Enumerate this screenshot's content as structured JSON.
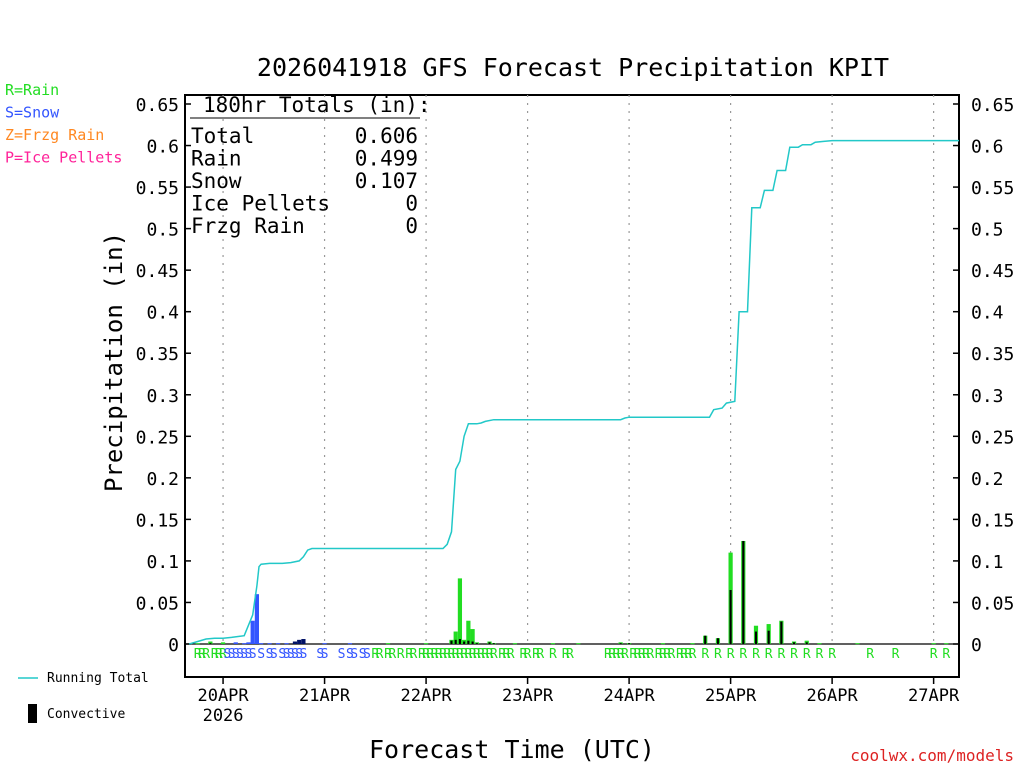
{
  "title": "2026041918 GFS Forecast Precipitation KPIT",
  "legend_types": [
    {
      "label": "R=Rain",
      "color": "#22dd22"
    },
    {
      "label": "S=Snow",
      "color": "#3355ff"
    },
    {
      "label": "Z=Frzg Rain",
      "color": "#ff8822"
    },
    {
      "label": "P=Ice Pellets",
      "color": "#ff2299"
    }
  ],
  "totals": {
    "heading": "180hr Totals (in):",
    "rows": [
      {
        "label": "Total",
        "value": "0.606"
      },
      {
        "label": "Rain",
        "value": "0.499"
      },
      {
        "label": "Snow",
        "value": "0.107"
      },
      {
        "label": "Ice Pellets",
        "value": "0"
      },
      {
        "label": "Frzg Rain",
        "value": "0"
      }
    ]
  },
  "bottom_legend": {
    "running_total": "Running Total",
    "convective": "Convective"
  },
  "footer": "coolwx.com/models",
  "colors": {
    "rain": "#22dd22",
    "snow": "#3355ff",
    "running_total": "#22c8c8",
    "convective": "#000000",
    "dark_snow": "#001166"
  },
  "chart_data": {
    "type": "bar",
    "title": "2026041918 GFS Forecast Precipitation KPIT",
    "xlabel": "Forecast Time (UTC)",
    "ylabel": "Precipitation (in)",
    "ylim": [
      0,
      0.65
    ],
    "yticks": [
      0,
      0.05,
      0.1,
      0.15,
      0.2,
      0.25,
      0.3,
      0.35,
      0.4,
      0.45,
      0.5,
      0.55,
      0.6,
      0.65
    ],
    "xlim_hours": [
      -3,
      180
    ],
    "x_unit": "forecast hours from 2026-04-19 18Z",
    "xticks": [
      {
        "hour": 6,
        "label": "20APR",
        "sublabel": "2026"
      },
      {
        "hour": 30,
        "label": "21APR",
        "sublabel": ""
      },
      {
        "hour": 54,
        "label": "22APR",
        "sublabel": ""
      },
      {
        "hour": 78,
        "label": "23APR",
        "sublabel": ""
      },
      {
        "hour": 102,
        "label": "24APR",
        "sublabel": ""
      },
      {
        "hour": 126,
        "label": "25APR",
        "sublabel": ""
      },
      {
        "hour": 150,
        "label": "26APR",
        "sublabel": ""
      },
      {
        "hour": 174,
        "label": "27APR",
        "sublabel": ""
      }
    ],
    "grid": "vertical dotted at day boundaries",
    "bars": [
      {
        "hour": 0,
        "value": 0.001,
        "convective": 0,
        "type": "rain"
      },
      {
        "hour": 3,
        "value": 0.003,
        "convective": 0.001,
        "type": "rain"
      },
      {
        "hour": 6,
        "value": 0.002,
        "convective": 0,
        "type": "rain"
      },
      {
        "hour": 9,
        "value": 0.002,
        "convective": 0,
        "type": "snow"
      },
      {
        "hour": 11,
        "value": 0.001,
        "convective": 0,
        "type": "snow"
      },
      {
        "hour": 12,
        "value": 0.002,
        "convective": 0,
        "type": "snow"
      },
      {
        "hour": 13,
        "value": 0.028,
        "convective": 0,
        "type": "snow"
      },
      {
        "hour": 14,
        "value": 0.06,
        "convective": 0,
        "type": "snow"
      },
      {
        "hour": 15,
        "value": 0.001,
        "convective": 0,
        "type": "snow"
      },
      {
        "hour": 17,
        "value": 0.001,
        "convective": 0,
        "type": "snow"
      },
      {
        "hour": 19,
        "value": 0.001,
        "convective": 0,
        "type": "snow"
      },
      {
        "hour": 21,
        "value": 0.001,
        "convective": 0,
        "type": "snow"
      },
      {
        "hour": 23,
        "value": 0.003,
        "convective": 0.003,
        "type": "snow"
      },
      {
        "hour": 24,
        "value": 0.005,
        "convective": 0.005,
        "type": "snow"
      },
      {
        "hour": 25,
        "value": 0.006,
        "convective": 0.006,
        "type": "snow"
      },
      {
        "hour": 30,
        "value": 0.001,
        "convective": 0,
        "type": "snow"
      },
      {
        "hour": 36,
        "value": 0.001,
        "convective": 0,
        "type": "snow"
      },
      {
        "hour": 45,
        "value": 0.001,
        "convective": 0,
        "type": "rain"
      },
      {
        "hour": 54,
        "value": 0.001,
        "convective": 0,
        "type": "rain"
      },
      {
        "hour": 60,
        "value": 0.005,
        "convective": 0.004,
        "type": "rain"
      },
      {
        "hour": 61,
        "value": 0.015,
        "convective": 0.005,
        "type": "rain"
      },
      {
        "hour": 62,
        "value": 0.079,
        "convective": 0.006,
        "type": "rain"
      },
      {
        "hour": 63,
        "value": 0.005,
        "convective": 0.003,
        "type": "rain"
      },
      {
        "hour": 64,
        "value": 0.028,
        "convective": 0.004,
        "type": "rain"
      },
      {
        "hour": 65,
        "value": 0.018,
        "convective": 0.003,
        "type": "rain"
      },
      {
        "hour": 66,
        "value": 0.002,
        "convective": 0.001,
        "type": "rain"
      },
      {
        "hour": 69,
        "value": 0.003,
        "convective": 0.002,
        "type": "rain"
      },
      {
        "hour": 70,
        "value": 0.001,
        "convective": 0.001,
        "type": "rain"
      },
      {
        "hour": 75,
        "value": 0.001,
        "convective": 0,
        "type": "rain"
      },
      {
        "hour": 84,
        "value": 0.001,
        "convective": 0,
        "type": "rain"
      },
      {
        "hour": 90,
        "value": 0.001,
        "convective": 0,
        "type": "rain"
      },
      {
        "hour": 100,
        "value": 0.002,
        "convective": 0.001,
        "type": "rain"
      },
      {
        "hour": 102,
        "value": 0.001,
        "convective": 0.001,
        "type": "rain"
      },
      {
        "hour": 110,
        "value": 0.001,
        "convective": 0,
        "type": "rain"
      },
      {
        "hour": 117,
        "value": 0.001,
        "convective": 0,
        "type": "rain"
      },
      {
        "hour": 120,
        "value": 0.01,
        "convective": 0.01,
        "type": "rain"
      },
      {
        "hour": 123,
        "value": 0.007,
        "convective": 0.007,
        "type": "rain"
      },
      {
        "hour": 126,
        "value": 0.11,
        "convective": 0.065,
        "type": "rain"
      },
      {
        "hour": 129,
        "value": 0.124,
        "convective": 0.124,
        "type": "rain"
      },
      {
        "hour": 132,
        "value": 0.022,
        "convective": 0.015,
        "type": "rain"
      },
      {
        "hour": 135,
        "value": 0.024,
        "convective": 0.016,
        "type": "rain"
      },
      {
        "hour": 138,
        "value": 0.028,
        "convective": 0.027,
        "type": "rain"
      },
      {
        "hour": 141,
        "value": 0.003,
        "convective": 0.002,
        "type": "rain"
      },
      {
        "hour": 144,
        "value": 0.004,
        "convective": 0.002,
        "type": "rain"
      },
      {
        "hour": 147,
        "value": 0.001,
        "convective": 0,
        "type": "rain"
      },
      {
        "hour": 156,
        "value": 0.001,
        "convective": 0,
        "type": "rain"
      },
      {
        "hour": 174,
        "value": 0.001,
        "convective": 0,
        "type": "rain"
      },
      {
        "hour": 177,
        "value": 0.001,
        "convective": 0,
        "type": "rain"
      }
    ],
    "running_total": [
      [
        -2,
        0
      ],
      [
        0,
        0.003
      ],
      [
        2,
        0.006
      ],
      [
        4,
        0.007
      ],
      [
        6,
        0.007
      ],
      [
        8,
        0.008
      ],
      [
        11,
        0.01
      ],
      [
        13,
        0.035
      ],
      [
        14,
        0.07
      ],
      [
        14.5,
        0.093
      ],
      [
        15,
        0.096
      ],
      [
        17,
        0.097
      ],
      [
        20,
        0.097
      ],
      [
        22,
        0.098
      ],
      [
        24,
        0.1
      ],
      [
        25,
        0.105
      ],
      [
        26,
        0.113
      ],
      [
        27,
        0.115
      ],
      [
        30,
        0.115
      ],
      [
        40,
        0.115
      ],
      [
        50,
        0.115
      ],
      [
        58,
        0.115
      ],
      [
        59,
        0.12
      ],
      [
        60,
        0.135
      ],
      [
        61,
        0.21
      ],
      [
        62,
        0.22
      ],
      [
        63,
        0.25
      ],
      [
        64,
        0.265
      ],
      [
        66,
        0.265
      ],
      [
        67,
        0.266
      ],
      [
        68,
        0.268
      ],
      [
        70,
        0.27
      ],
      [
        80,
        0.27
      ],
      [
        100,
        0.27
      ],
      [
        101,
        0.272
      ],
      [
        102,
        0.273
      ],
      [
        110,
        0.273
      ],
      [
        121,
        0.273
      ],
      [
        122,
        0.282
      ],
      [
        124,
        0.284
      ],
      [
        125,
        0.29
      ],
      [
        127,
        0.292
      ],
      [
        128,
        0.4
      ],
      [
        130,
        0.4
      ],
      [
        131,
        0.525
      ],
      [
        133,
        0.525
      ],
      [
        134,
        0.546
      ],
      [
        136,
        0.546
      ],
      [
        137,
        0.57
      ],
      [
        139,
        0.57
      ],
      [
        140,
        0.598
      ],
      [
        142,
        0.598
      ],
      [
        143,
        0.601
      ],
      [
        145,
        0.601
      ],
      [
        146,
        0.604
      ],
      [
        148,
        0.605
      ],
      [
        150,
        0.606
      ],
      [
        180,
        0.606
      ]
    ],
    "type_row": [
      {
        "hour": 0,
        "code": "R"
      },
      {
        "hour": 1,
        "code": "R"
      },
      {
        "hour": 2,
        "code": "R"
      },
      {
        "hour": 4,
        "code": "R"
      },
      {
        "hour": 5,
        "code": "R"
      },
      {
        "hour": 6,
        "code": "R"
      },
      {
        "hour": 7,
        "code": "S"
      },
      {
        "hour": 8,
        "code": "S"
      },
      {
        "hour": 9,
        "code": "S"
      },
      {
        "hour": 10,
        "code": "S"
      },
      {
        "hour": 11,
        "code": "S"
      },
      {
        "hour": 12,
        "code": "S"
      },
      {
        "hour": 13,
        "code": "S"
      },
      {
        "hour": 15,
        "code": "S"
      },
      {
        "hour": 17,
        "code": "S"
      },
      {
        "hour": 18,
        "code": "S"
      },
      {
        "hour": 20,
        "code": "S"
      },
      {
        "hour": 21,
        "code": "S"
      },
      {
        "hour": 22,
        "code": "S"
      },
      {
        "hour": 23,
        "code": "S"
      },
      {
        "hour": 24,
        "code": "S"
      },
      {
        "hour": 25,
        "code": "S"
      },
      {
        "hour": 29,
        "code": "S"
      },
      {
        "hour": 30,
        "code": "S"
      },
      {
        "hour": 34,
        "code": "S"
      },
      {
        "hour": 36,
        "code": "S"
      },
      {
        "hour": 37,
        "code": "S"
      },
      {
        "hour": 39,
        "code": "S"
      },
      {
        "hour": 40,
        "code": "S"
      },
      {
        "hour": 42,
        "code": "R"
      },
      {
        "hour": 43,
        "code": "R"
      },
      {
        "hour": 45,
        "code": "R"
      },
      {
        "hour": 46,
        "code": "R"
      },
      {
        "hour": 48,
        "code": "R"
      },
      {
        "hour": 50,
        "code": "R"
      },
      {
        "hour": 51,
        "code": "R"
      },
      {
        "hour": 53,
        "code": "R"
      },
      {
        "hour": 54,
        "code": "R"
      },
      {
        "hour": 55,
        "code": "R"
      },
      {
        "hour": 56,
        "code": "R"
      },
      {
        "hour": 57,
        "code": "R"
      },
      {
        "hour": 58,
        "code": "R"
      },
      {
        "hour": 59,
        "code": "R"
      },
      {
        "hour": 60,
        "code": "R"
      },
      {
        "hour": 61,
        "code": "R"
      },
      {
        "hour": 62,
        "code": "R"
      },
      {
        "hour": 63,
        "code": "R"
      },
      {
        "hour": 64,
        "code": "R"
      },
      {
        "hour": 65,
        "code": "R"
      },
      {
        "hour": 66,
        "code": "R"
      },
      {
        "hour": 67,
        "code": "R"
      },
      {
        "hour": 68,
        "code": "R"
      },
      {
        "hour": 69,
        "code": "R"
      },
      {
        "hour": 70,
        "code": "R"
      },
      {
        "hour": 72,
        "code": "R"
      },
      {
        "hour": 73,
        "code": "R"
      },
      {
        "hour": 74,
        "code": "R"
      },
      {
        "hour": 77,
        "code": "R"
      },
      {
        "hour": 78,
        "code": "R"
      },
      {
        "hour": 80,
        "code": "R"
      },
      {
        "hour": 81,
        "code": "R"
      },
      {
        "hour": 84,
        "code": "R"
      },
      {
        "hour": 87,
        "code": "R"
      },
      {
        "hour": 88,
        "code": "R"
      },
      {
        "hour": 97,
        "code": "R"
      },
      {
        "hour": 98,
        "code": "R"
      },
      {
        "hour": 99,
        "code": "R"
      },
      {
        "hour": 100,
        "code": "R"
      },
      {
        "hour": 101,
        "code": "R"
      },
      {
        "hour": 103,
        "code": "R"
      },
      {
        "hour": 104,
        "code": "R"
      },
      {
        "hour": 105,
        "code": "R"
      },
      {
        "hour": 106,
        "code": "R"
      },
      {
        "hour": 107,
        "code": "R"
      },
      {
        "hour": 109,
        "code": "R"
      },
      {
        "hour": 110,
        "code": "R"
      },
      {
        "hour": 111,
        "code": "R"
      },
      {
        "hour": 112,
        "code": "R"
      },
      {
        "hour": 114,
        "code": "R"
      },
      {
        "hour": 115,
        "code": "R"
      },
      {
        "hour": 116,
        "code": "R"
      },
      {
        "hour": 117,
        "code": "R"
      },
      {
        "hour": 120,
        "code": "R"
      },
      {
        "hour": 123,
        "code": "R"
      },
      {
        "hour": 126,
        "code": "R"
      },
      {
        "hour": 129,
        "code": "R"
      },
      {
        "hour": 132,
        "code": "R"
      },
      {
        "hour": 135,
        "code": "R"
      },
      {
        "hour": 138,
        "code": "R"
      },
      {
        "hour": 141,
        "code": "R"
      },
      {
        "hour": 144,
        "code": "R"
      },
      {
        "hour": 147,
        "code": "R"
      },
      {
        "hour": 150,
        "code": "R"
      },
      {
        "hour": 159,
        "code": "R"
      },
      {
        "hour": 165,
        "code": "R"
      },
      {
        "hour": 174,
        "code": "R"
      },
      {
        "hour": 177,
        "code": "R"
      }
    ]
  }
}
